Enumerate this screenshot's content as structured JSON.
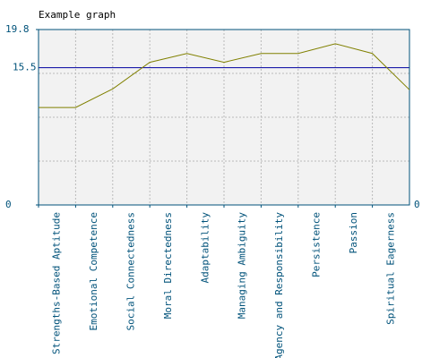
{
  "chart_data": {
    "type": "line",
    "title": "Example graph",
    "categories": [
      "Strengths-Based Aptitude",
      "Emotional Competence",
      "Social Connectedness",
      "Moral Directedness",
      "Adaptability",
      "Managing Ambiguity",
      "Agency and Responsibility",
      "Persistence",
      "Passion",
      "Spiritual Eagerness",
      null
    ],
    "series": [
      {
        "name": null,
        "color": "#808000",
        "values": [
          11.0,
          11.0,
          13.1,
          16.1,
          17.1,
          16.1,
          17.1,
          17.1,
          18.2,
          17.1,
          13.0
        ]
      }
    ],
    "ylim": [
      0,
      19.8
    ],
    "yticks": [
      0,
      19.8
    ],
    "y2ticks": [
      0
    ],
    "grid_values": [
      4.95,
      9.9,
      14.85
    ],
    "reference_line": {
      "value": 15.5,
      "label": "15.5",
      "color": "#0000a0"
    },
    "grid": true
  }
}
